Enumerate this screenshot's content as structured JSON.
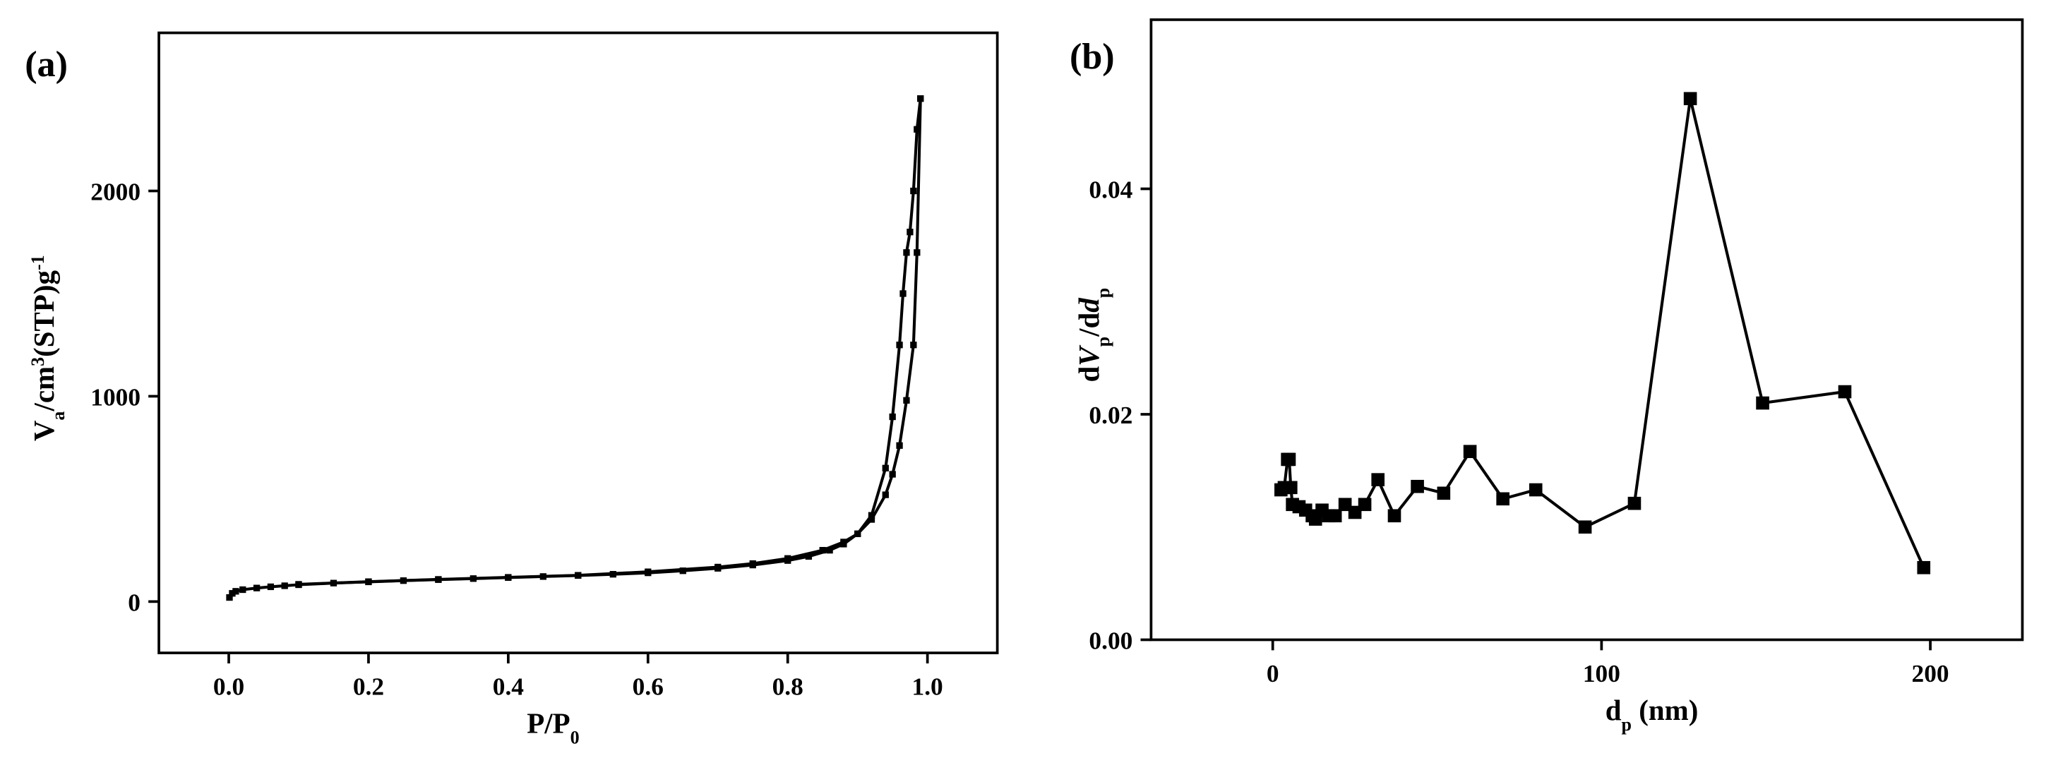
{
  "chart_data": [
    {
      "type": "line",
      "panel_label": "(a)",
      "xlabel": [
        "P/P",
        "0"
      ],
      "ylabel": [
        "V",
        "a",
        "/cm",
        "3",
        "(STP)g",
        "-1"
      ],
      "xlim": [
        -0.1,
        1.1
      ],
      "xticks": [
        {
          "value": 0,
          "label": "0.0"
        },
        {
          "value": 0.2,
          "label": "0.2"
        },
        {
          "value": 0.4,
          "label": "0.4"
        },
        {
          "value": 0.6,
          "label": "0.6"
        },
        {
          "value": 0.8,
          "label": "0.8"
        },
        {
          "value": 1.0,
          "label": "1.0"
        }
      ],
      "ylim": [
        -250,
        2770
      ],
      "yticks": [
        0,
        1000,
        2000
      ],
      "marker": "square",
      "series": [
        {
          "color": "#000000",
          "x": [
            0.001,
            0.005,
            0.01,
            0.02,
            0.04,
            0.06,
            0.08,
            0.1,
            0.15,
            0.2,
            0.25,
            0.3,
            0.35,
            0.4,
            0.45,
            0.5,
            0.55,
            0.6,
            0.65,
            0.7,
            0.75,
            0.8,
            0.83,
            0.86,
            0.88,
            0.9,
            0.92,
            0.94,
            0.95,
            0.96,
            0.97,
            0.98,
            0.985,
            0.99
          ],
          "values": [
            20,
            40,
            50,
            58,
            66,
            72,
            77,
            82,
            90,
            96,
            102,
            107,
            112,
            117,
            122,
            127,
            133,
            140,
            150,
            162,
            178,
            200,
            220,
            250,
            280,
            330,
            400,
            520,
            620,
            760,
            980,
            1250,
            1700,
            2450
          ]
        },
        {
          "color": "#000000",
          "x": [
            0.99,
            0.985,
            0.98,
            0.975,
            0.97,
            0.965,
            0.96,
            0.95,
            0.94,
            0.92,
            0.9,
            0.88,
            0.85,
            0.8,
            0.75,
            0.7,
            0.6,
            0.5,
            0.4,
            0.3,
            0.2,
            0.1
          ],
          "values": [
            2450,
            2300,
            2000,
            1800,
            1700,
            1500,
            1250,
            900,
            650,
            420,
            330,
            290,
            250,
            210,
            185,
            168,
            145,
            128,
            118,
            108,
            97,
            84
          ]
        }
      ]
    },
    {
      "type": "line",
      "panel_label": "(b)",
      "xlabel": [
        "d",
        "p",
        " (nm)"
      ],
      "ylabel": [
        "d",
        "V",
        "p",
        "/d",
        "d",
        "p"
      ],
      "xlim": [
        -37,
        228
      ],
      "xticks": [
        0,
        100,
        200
      ],
      "ylim": [
        0,
        0.055
      ],
      "yticks": [
        {
          "value": 0,
          "label": "0.00"
        },
        {
          "value": 0.02,
          "label": "0.02"
        },
        {
          "value": 0.04,
          "label": "0.04"
        }
      ],
      "marker": "square",
      "series": [
        {
          "color": "#000000",
          "x": [
            2.5,
            3.5,
            4.5,
            5,
            5.5,
            6,
            8,
            10,
            12,
            13,
            15,
            17,
            19,
            22,
            25,
            28,
            32,
            37,
            44,
            52,
            60,
            70,
            80,
            95,
            110,
            127,
            149,
            174,
            198
          ],
          "values": [
            0.0133,
            0.0135,
            0.016,
            0.016,
            0.0135,
            0.012,
            0.0118,
            0.0115,
            0.011,
            0.0107,
            0.0115,
            0.011,
            0.011,
            0.012,
            0.0113,
            0.012,
            0.0142,
            0.011,
            0.0136,
            0.013,
            0.0167,
            0.0125,
            0.0133,
            0.01,
            0.0121,
            0.048,
            0.021,
            0.022,
            0.0064
          ]
        }
      ]
    }
  ]
}
